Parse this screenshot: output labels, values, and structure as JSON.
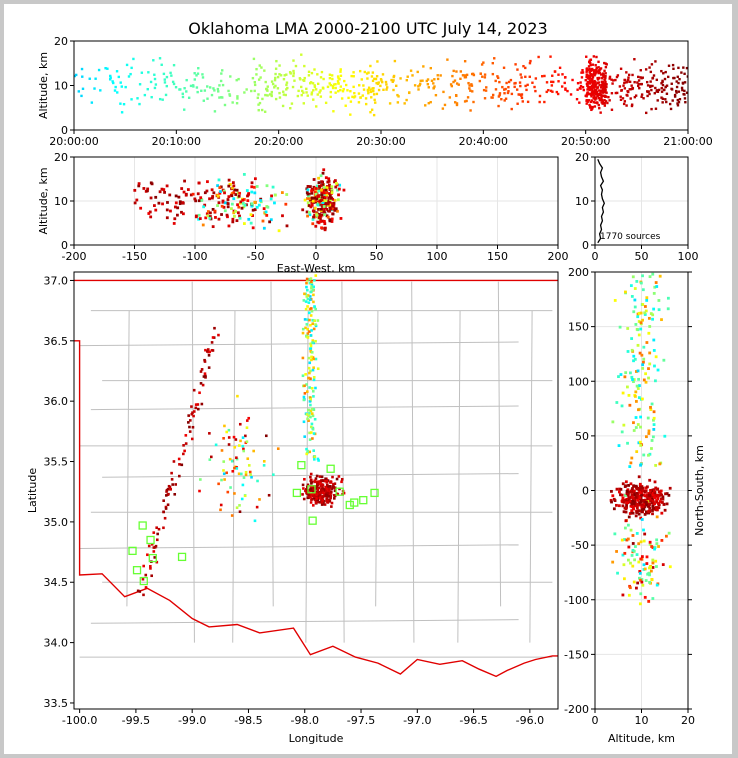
{
  "title": "Oklahoma LMA 2000-2100 UTC July 14, 2023",
  "chart_data": [
    {
      "id": "time_altitude",
      "type": "scatter",
      "xlabel": "",
      "ylabel": "Altitude, km",
      "xlim": [
        "20:00:00",
        "21:00:00"
      ],
      "xticks": [
        "20:00:00",
        "20:10:00",
        "20:20:00",
        "20:30:00",
        "20:40:00",
        "20:50:00",
        "21:00:00"
      ],
      "ylim": [
        0,
        20
      ],
      "yticks": [
        "0",
        "10",
        "20"
      ],
      "color_by": "time",
      "clusters": [
        {
          "t_start_min": 0,
          "t_end_min": 18,
          "alt_range": [
            0,
            20
          ],
          "count": 130
        },
        {
          "t_start_min": 18,
          "t_end_min": 30,
          "alt_range": [
            0,
            20
          ],
          "count": 200
        },
        {
          "t_start_min": 30,
          "t_end_min": 44,
          "alt_range": [
            0,
            20
          ],
          "count": 160
        },
        {
          "t_start_min": 44,
          "t_end_min": 50,
          "alt_range": [
            0,
            20
          ],
          "count": 60
        },
        {
          "t_start_min": 50,
          "t_end_min": 52,
          "alt_range": [
            0,
            20
          ],
          "count": 250
        },
        {
          "t_start_min": 52,
          "t_end_min": 60,
          "alt_range": [
            0,
            20
          ],
          "count": 170
        }
      ]
    },
    {
      "id": "ew_altitude",
      "type": "scatter",
      "xlabel": "East-West, km",
      "ylabel": "Altitude, km",
      "xlim": [
        -200,
        200
      ],
      "xticks": [
        "-200",
        "-150",
        "-100",
        "-50",
        "0",
        "50",
        "100",
        "150",
        "200"
      ],
      "ylim": [
        0,
        20
      ],
      "yticks": [
        "0",
        "10",
        "20"
      ]
    },
    {
      "id": "altitude_histogram",
      "type": "line",
      "xlim": [
        0,
        100
      ],
      "xticks": [
        "0",
        "50",
        "100"
      ],
      "ylim": [
        0,
        20
      ],
      "yticks": [
        "0",
        "10",
        "20"
      ],
      "annotation": "1770 sources",
      "profile": [
        {
          "alt": 0.5,
          "count": 3
        },
        {
          "alt": 1.5,
          "count": 6
        },
        {
          "alt": 2.5,
          "count": 5
        },
        {
          "alt": 3.5,
          "count": 7
        },
        {
          "alt": 4.5,
          "count": 6
        },
        {
          "alt": 5.5,
          "count": 8
        },
        {
          "alt": 6.5,
          "count": 7
        },
        {
          "alt": 7.5,
          "count": 9
        },
        {
          "alt": 8.5,
          "count": 8
        },
        {
          "alt": 9.5,
          "count": 10
        },
        {
          "alt": 10.5,
          "count": 8
        },
        {
          "alt": 11.5,
          "count": 7
        },
        {
          "alt": 12.5,
          "count": 8
        },
        {
          "alt": 13.5,
          "count": 6
        },
        {
          "alt": 14.5,
          "count": 9
        },
        {
          "alt": 15.5,
          "count": 7
        },
        {
          "alt": 16.5,
          "count": 6
        },
        {
          "alt": 17.5,
          "count": 8
        },
        {
          "alt": 18.5,
          "count": 5
        },
        {
          "alt": 19.5,
          "count": 3
        }
      ]
    },
    {
      "id": "plan_view",
      "type": "scatter",
      "xlabel": "Longitude",
      "ylabel": "Latitude",
      "xlim": [
        -100.05,
        -95.75
      ],
      "xticks": [
        "-100.0",
        "-99.5",
        "-99.0",
        "-98.5",
        "-98.0",
        "-97.5",
        "-97.0",
        "-96.5",
        "-96.0"
      ],
      "ylim": [
        33.45,
        37.07
      ],
      "yticks": [
        "33.5",
        "34.0",
        "34.5",
        "35.0",
        "35.5",
        "36.0",
        "36.5",
        "37.0"
      ],
      "stations": [
        [
          -99.44,
          34.97
        ],
        [
          -99.37,
          34.85
        ],
        [
          -99.53,
          34.76
        ],
        [
          -99.35,
          34.7
        ],
        [
          -99.49,
          34.6
        ],
        [
          -99.43,
          34.51
        ],
        [
          -99.09,
          34.71
        ],
        [
          -98.03,
          35.47
        ],
        [
          -97.77,
          35.44
        ],
        [
          -98.07,
          35.24
        ],
        [
          -97.94,
          35.27
        ],
        [
          -97.69,
          35.25
        ],
        [
          -97.93,
          35.01
        ],
        [
          -97.6,
          35.14
        ],
        [
          -97.56,
          35.16
        ],
        [
          -97.48,
          35.18
        ],
        [
          -97.38,
          35.24
        ]
      ]
    },
    {
      "id": "ns_altitude",
      "type": "scatter",
      "xlabel": "Altitude, km",
      "ylabel": "North-South, km",
      "xlim": [
        0,
        20
      ],
      "xticks": [
        "0",
        "10",
        "20"
      ],
      "ylim": [
        -200,
        200
      ],
      "yticks": [
        "-200",
        "-150",
        "-100",
        "-50",
        "0",
        "50",
        "100",
        "150",
        "200"
      ]
    }
  ],
  "colors": {
    "border": "#e00000",
    "county_lines": "#c0c0c0",
    "stations": "#66ff33",
    "grid": "#e6e6e6"
  }
}
